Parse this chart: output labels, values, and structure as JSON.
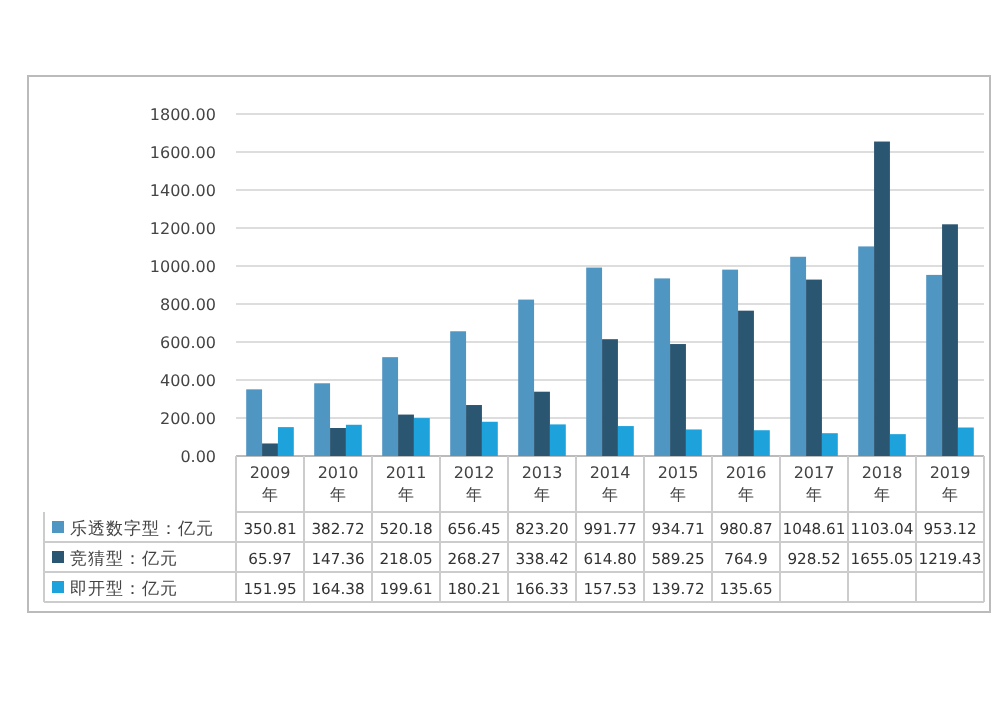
{
  "chart_data": {
    "type": "bar",
    "categories": [
      "2009\n年",
      "2010\n年",
      "2011\n年",
      "2012\n年",
      "2013\n年",
      "2014\n年",
      "2015\n年",
      "2016\n年",
      "2017\n年",
      "2018\n年",
      "2019\n年"
    ],
    "series": [
      {
        "name": "乐透数字型：亿元",
        "color": "#4f96c2",
        "values": [
          350.81,
          382.72,
          520.18,
          656.45,
          823.2,
          991.77,
          934.71,
          980.87,
          1048.61,
          1103.04,
          953.12
        ],
        "value_labels": [
          "350.81",
          "382.72",
          "520.18",
          "656.45",
          "823.20",
          "991.77",
          "934.71",
          "980.87",
          "1048.61",
          "1103.04",
          "953.12"
        ]
      },
      {
        "name": "竞猜型：亿元",
        "color": "#2b5672",
        "values": [
          65.97,
          147.36,
          218.05,
          268.27,
          338.42,
          614.8,
          589.25,
          764.9,
          928.52,
          1655.05,
          1219.43
        ],
        "value_labels": [
          "65.97",
          "147.36",
          "218.05",
          "268.27",
          "338.42",
          "614.80",
          "589.25",
          "764.9",
          "928.52",
          "1655.05",
          "1219.43"
        ]
      },
      {
        "name": "即开型：亿元",
        "color": "#1ea2dc",
        "values": [
          151.95,
          164.38,
          199.61,
          180.21,
          166.33,
          157.53,
          139.72,
          135.65,
          120,
          115,
          150
        ],
        "value_labels": [
          "151.95",
          "164.38",
          "199.61",
          "180.21",
          "166.33",
          "157.53",
          "139.72",
          "135.65",
          null,
          null,
          null
        ]
      }
    ],
    "ylim": [
      0,
      1800
    ],
    "yticks": [
      {
        "value": 0,
        "label": "0.00"
      },
      {
        "value": 200,
        "label": "200.00"
      },
      {
        "value": 400,
        "label": "400.00"
      },
      {
        "value": 600,
        "label": "600.00"
      },
      {
        "value": 800,
        "label": "800.00"
      },
      {
        "value": 1000,
        "label": "1000.00"
      },
      {
        "value": 1200,
        "label": "1200.00"
      },
      {
        "value": 1400,
        "label": "1400.00"
      },
      {
        "value": 1600,
        "label": "1600.00"
      },
      {
        "value": 1800,
        "label": "1800.00"
      }
    ],
    "grid": "y",
    "legend": "bottom"
  }
}
